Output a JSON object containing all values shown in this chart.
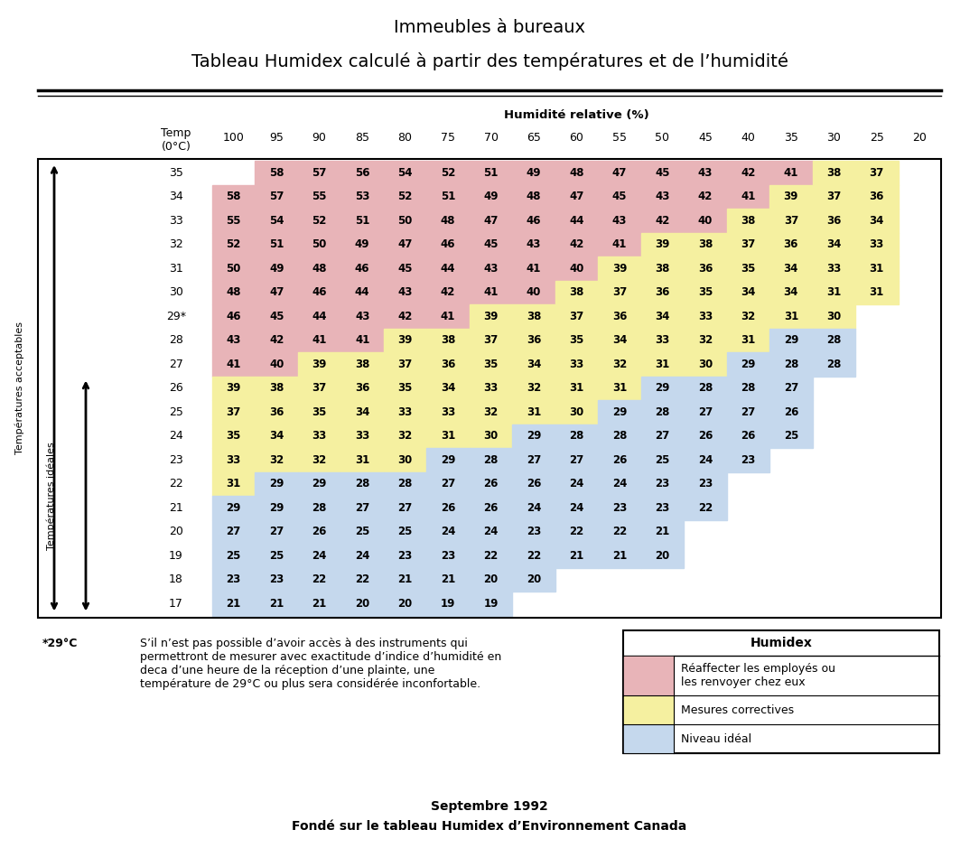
{
  "title1": "Immeubles à bureaux",
  "title2": "Tableau Humidex calculé à partir des températures et de l’humidité",
  "humidity_header": "Humidité relative (%)",
  "col_header": [
    100,
    95,
    90,
    85,
    80,
    75,
    70,
    65,
    60,
    55,
    50,
    45,
    40,
    35,
    30,
    25,
    20
  ],
  "row_temps": [
    "35",
    "34",
    "33",
    "32",
    "31",
    "30",
    "29*",
    "28",
    "27",
    "26",
    "25",
    "24",
    "23",
    "22",
    "21",
    "20",
    "19",
    "18",
    "17"
  ],
  "table_data": [
    [
      null,
      58,
      57,
      56,
      54,
      52,
      51,
      49,
      48,
      47,
      45,
      43,
      42,
      41,
      38,
      37,
      null
    ],
    [
      58,
      57,
      55,
      53,
      52,
      51,
      49,
      48,
      47,
      45,
      43,
      42,
      41,
      39,
      37,
      36,
      null
    ],
    [
      55,
      54,
      52,
      51,
      50,
      48,
      47,
      46,
      44,
      43,
      42,
      40,
      38,
      37,
      36,
      34,
      null
    ],
    [
      52,
      51,
      50,
      49,
      47,
      46,
      45,
      43,
      42,
      41,
      39,
      38,
      37,
      36,
      34,
      33,
      null
    ],
    [
      50,
      49,
      48,
      46,
      45,
      44,
      43,
      41,
      40,
      39,
      38,
      36,
      35,
      34,
      33,
      31,
      null
    ],
    [
      48,
      47,
      46,
      44,
      43,
      42,
      41,
      40,
      38,
      37,
      36,
      35,
      34,
      34,
      31,
      31,
      null
    ],
    [
      46,
      45,
      44,
      43,
      42,
      41,
      39,
      38,
      37,
      36,
      34,
      33,
      32,
      31,
      30,
      null,
      null
    ],
    [
      43,
      42,
      41,
      41,
      39,
      38,
      37,
      36,
      35,
      34,
      33,
      32,
      31,
      29,
      28,
      null,
      null
    ],
    [
      41,
      40,
      39,
      38,
      37,
      36,
      35,
      34,
      33,
      32,
      31,
      30,
      29,
      28,
      28,
      null,
      null
    ],
    [
      39,
      38,
      37,
      36,
      35,
      34,
      33,
      32,
      31,
      31,
      29,
      28,
      28,
      27,
      null,
      null,
      null
    ],
    [
      37,
      36,
      35,
      34,
      33,
      33,
      32,
      31,
      30,
      29,
      28,
      27,
      27,
      26,
      null,
      null,
      null
    ],
    [
      35,
      34,
      33,
      33,
      32,
      31,
      30,
      29,
      28,
      28,
      27,
      26,
      26,
      25,
      null,
      null,
      null
    ],
    [
      33,
      32,
      32,
      31,
      30,
      29,
      28,
      27,
      27,
      26,
      25,
      24,
      23,
      null,
      null,
      null,
      null
    ],
    [
      31,
      29,
      29,
      28,
      28,
      27,
      26,
      26,
      24,
      24,
      23,
      23,
      null,
      null,
      null,
      null,
      null
    ],
    [
      29,
      29,
      28,
      27,
      27,
      26,
      26,
      24,
      24,
      23,
      23,
      22,
      null,
      null,
      null,
      null,
      null
    ],
    [
      27,
      27,
      26,
      25,
      25,
      24,
      24,
      23,
      22,
      22,
      21,
      null,
      null,
      null,
      null,
      null,
      null
    ],
    [
      25,
      25,
      24,
      24,
      23,
      23,
      22,
      22,
      21,
      21,
      20,
      null,
      null,
      null,
      null,
      null,
      null
    ],
    [
      23,
      23,
      22,
      22,
      21,
      21,
      20,
      20,
      null,
      null,
      null,
      null,
      null,
      null,
      null,
      null,
      null
    ],
    [
      21,
      21,
      21,
      20,
      20,
      19,
      19,
      null,
      null,
      null,
      null,
      null,
      null,
      null,
      null,
      null,
      null
    ]
  ],
  "color_pink": "#E8B4B8",
  "color_yellow": "#F5F0A0",
  "color_blue": "#C5D8ED",
  "footnote_label": "*29°C",
  "footnote_text": "S’il n’est pas possible d’avoir accès à des instruments qui\npermettront de mesurer avec exactitude d’indice d’humidité en\ndeca d’une heure de la réception d’une plainte, une\ntempérature de 29°C ou plus sera considérée inconfortable.",
  "legend_title": "Humidex",
  "legend_items": [
    {
      "color": "#E8B4B8",
      "text": "Réaffecter les employés ou\nles renvoyer chez eux"
    },
    {
      "color": "#F5F0A0",
      "text": "Mesures correctives"
    },
    {
      "color": "#C5D8ED",
      "text": "Niveau idéal"
    }
  ],
  "footer1": "Septembre 1992",
  "footer2": "Fondé sur le tableau Humidex d’Environnement Canada",
  "label_acceptables": "Températures acceptables",
  "label_ideales": "Températures idéales"
}
